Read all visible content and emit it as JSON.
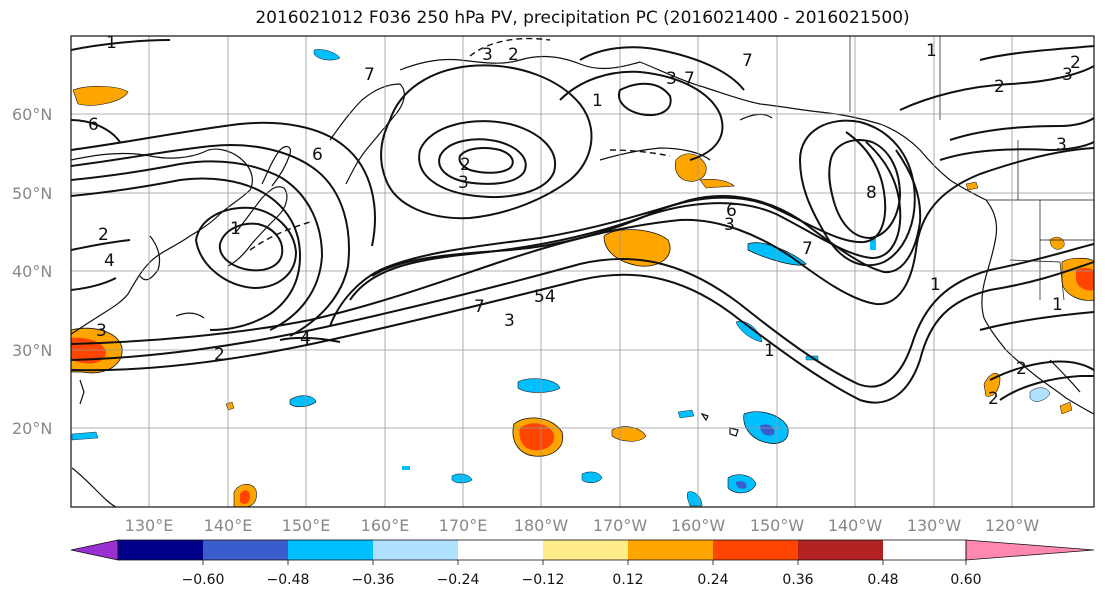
{
  "title": "2016021012 F036 250 hPa PV, precipitation PC (2016021400 - 2016021500)",
  "lat_labels": [
    "60°N",
    "50°N",
    "40°N",
    "30°N",
    "20°N"
  ],
  "lon_labels": [
    "130°E",
    "140°E",
    "150°E",
    "160°E",
    "170°E",
    "180°W",
    "170°W",
    "160°W",
    "150°W",
    "140°W",
    "130°W",
    "120°W"
  ],
  "colorbar": {
    "colors": [
      "#9b30d0",
      "#00008b",
      "#3a5ccc",
      "#00bfff",
      "#b0e2ff",
      "#ffffff",
      "#ffec8b",
      "#ffa500",
      "#ff4500",
      "#b22222",
      "#ff88b0"
    ],
    "tick_labels": [
      "−0.60",
      "−0.48",
      "−0.36",
      "−0.24",
      "−0.12",
      "0.12",
      "0.24",
      "0.36",
      "0.48",
      "0.60"
    ]
  },
  "contour_labels": [
    {
      "id": "c1",
      "text": "1"
    },
    {
      "id": "c2",
      "text": "7"
    },
    {
      "id": "c3",
      "text": "3"
    },
    {
      "id": "c4",
      "text": "2"
    },
    {
      "id": "c5",
      "text": "7"
    },
    {
      "id": "c6",
      "text": "1"
    },
    {
      "id": "c7",
      "text": "3"
    },
    {
      "id": "c8",
      "text": "7"
    },
    {
      "id": "c9",
      "text": "1"
    },
    {
      "id": "c10",
      "text": "2"
    },
    {
      "id": "c11",
      "text": "3"
    },
    {
      "id": "c12",
      "text": "6"
    },
    {
      "id": "c13",
      "text": "6"
    },
    {
      "id": "c14",
      "text": "2"
    },
    {
      "id": "c15",
      "text": "3"
    },
    {
      "id": "c16",
      "text": "1"
    },
    {
      "id": "c17",
      "text": "2"
    },
    {
      "id": "c18",
      "text": "4"
    },
    {
      "id": "c19",
      "text": "3"
    },
    {
      "id": "c20",
      "text": "2"
    },
    {
      "id": "c21",
      "text": "4"
    },
    {
      "id": "c22",
      "text": "7"
    },
    {
      "id": "c23",
      "text": "54"
    },
    {
      "id": "c24",
      "text": "3"
    },
    {
      "id": "c25",
      "text": "6"
    },
    {
      "id": "c26",
      "text": "3"
    },
    {
      "id": "c27",
      "text": "7"
    },
    {
      "id": "c28",
      "text": "8"
    },
    {
      "id": "c29",
      "text": "1"
    },
    {
      "id": "c30",
      "text": "1"
    },
    {
      "id": "c31",
      "text": "2"
    },
    {
      "id": "c32",
      "text": "1"
    },
    {
      "id": "c33",
      "text": "2"
    },
    {
      "id": "c34",
      "text": "3"
    },
    {
      "id": "c35",
      "text": "2"
    }
  ]
}
